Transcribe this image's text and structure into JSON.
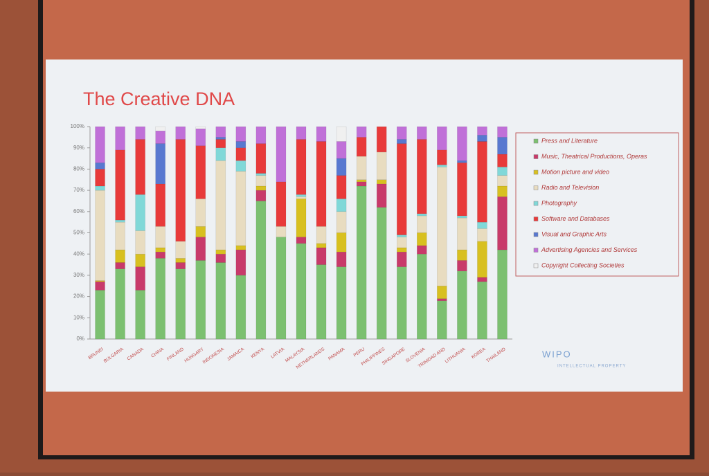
{
  "chart_data": {
    "type": "stacked_bar",
    "title": "The Creative DNA",
    "categories": [
      "BRUNEI",
      "BULGARIA",
      "CANADA",
      "CHINA",
      "FINLAND",
      "HUNGARY",
      "INDONESIA",
      "JAMAICA",
      "KENYA",
      "LATVIA",
      "MALAYSIA",
      "NETHERLANDS",
      "PANAMA",
      "PERU",
      "PHILIPPINES",
      "SINGAPORE",
      "SLOVENIA",
      "TRINIDAD AND",
      "LITHUANIA",
      "KOREA",
      "THAILAND"
    ],
    "series": [
      {
        "name": "Press and Literature",
        "color": "#7cc070",
        "values": [
          23,
          33,
          23,
          38,
          33,
          37,
          36,
          30,
          65,
          48,
          45,
          35,
          34,
          72,
          62,
          34,
          40,
          18,
          32,
          27,
          42
        ]
      },
      {
        "name": "Music, Theatrical Productions, Operas",
        "color": "#c83a6a",
        "values": [
          4,
          3,
          11,
          3,
          3,
          11,
          4,
          12,
          5,
          0,
          3,
          8,
          7,
          2,
          11,
          7,
          4,
          1,
          5,
          2,
          25
        ]
      },
      {
        "name": "Motion picture and video",
        "color": "#d8c020",
        "values": [
          0.5,
          6,
          6,
          2,
          2,
          5,
          2,
          2,
          2,
          0,
          18,
          2,
          9,
          1,
          2,
          2,
          6,
          6,
          5,
          17,
          5
        ]
      },
      {
        "name": "Radio and Television",
        "color": "#e8dcc0",
        "values": [
          42.5,
          13,
          11,
          10,
          8,
          13,
          42,
          35,
          5,
          5,
          1,
          8,
          10,
          11,
          13,
          5,
          8,
          56,
          15,
          6,
          5
        ]
      },
      {
        "name": "Photography",
        "color": "#80d8d8",
        "values": [
          2,
          1,
          17,
          0,
          0,
          0,
          6,
          5,
          1,
          0,
          1,
          0,
          6,
          0,
          0,
          1,
          1,
          1,
          1,
          3,
          4
        ]
      },
      {
        "name": "Software and Databases",
        "color": "#e83a3a",
        "values": [
          8,
          33,
          26,
          20,
          48,
          25,
          4,
          6,
          14,
          21,
          26,
          40,
          11,
          9,
          12,
          43,
          35,
          7,
          25,
          38,
          6
        ]
      },
      {
        "name": "Visual and Graphic Arts",
        "color": "#5878d0",
        "values": [
          3,
          0,
          0,
          19,
          0,
          0,
          1,
          3,
          0,
          0,
          0,
          0,
          8,
          0,
          0,
          2,
          0,
          0,
          1,
          3,
          8
        ]
      },
      {
        "name": "Advertising Agencies and Services",
        "color": "#c070d8",
        "values": [
          17,
          11,
          6,
          6,
          6,
          8,
          5,
          7,
          8,
          26,
          6,
          7,
          8,
          5,
          0,
          6,
          6,
          11,
          16,
          4,
          5
        ]
      },
      {
        "name": "Copyright Collecting Societies",
        "color": "#f0f0f0",
        "values": [
          0,
          0,
          0,
          2,
          0,
          1,
          0,
          0,
          0,
          0,
          0,
          0,
          7,
          0,
          0,
          0,
          0,
          0,
          0,
          0,
          0
        ]
      }
    ],
    "ylim": [
      0,
      100
    ],
    "yticks": [
      {
        "value": 0,
        "label": "0%"
      },
      {
        "value": 10,
        "label": "10%"
      },
      {
        "value": 20,
        "label": "20%"
      },
      {
        "value": 30,
        "label": "30%"
      },
      {
        "value": 40,
        "label": "40%"
      },
      {
        "value": 50,
        "label": "50%"
      },
      {
        "value": 60,
        "label": "60%"
      },
      {
        "value": 70,
        "label": "70%"
      },
      {
        "value": 80,
        "label": "80%"
      },
      {
        "value": 90,
        "label": "90%"
      },
      {
        "value": 100,
        "label": "100%"
      }
    ],
    "legend": "right",
    "annotations": [
      "WIPO",
      "INTELLECTUAL PROPERTY"
    ]
  }
}
